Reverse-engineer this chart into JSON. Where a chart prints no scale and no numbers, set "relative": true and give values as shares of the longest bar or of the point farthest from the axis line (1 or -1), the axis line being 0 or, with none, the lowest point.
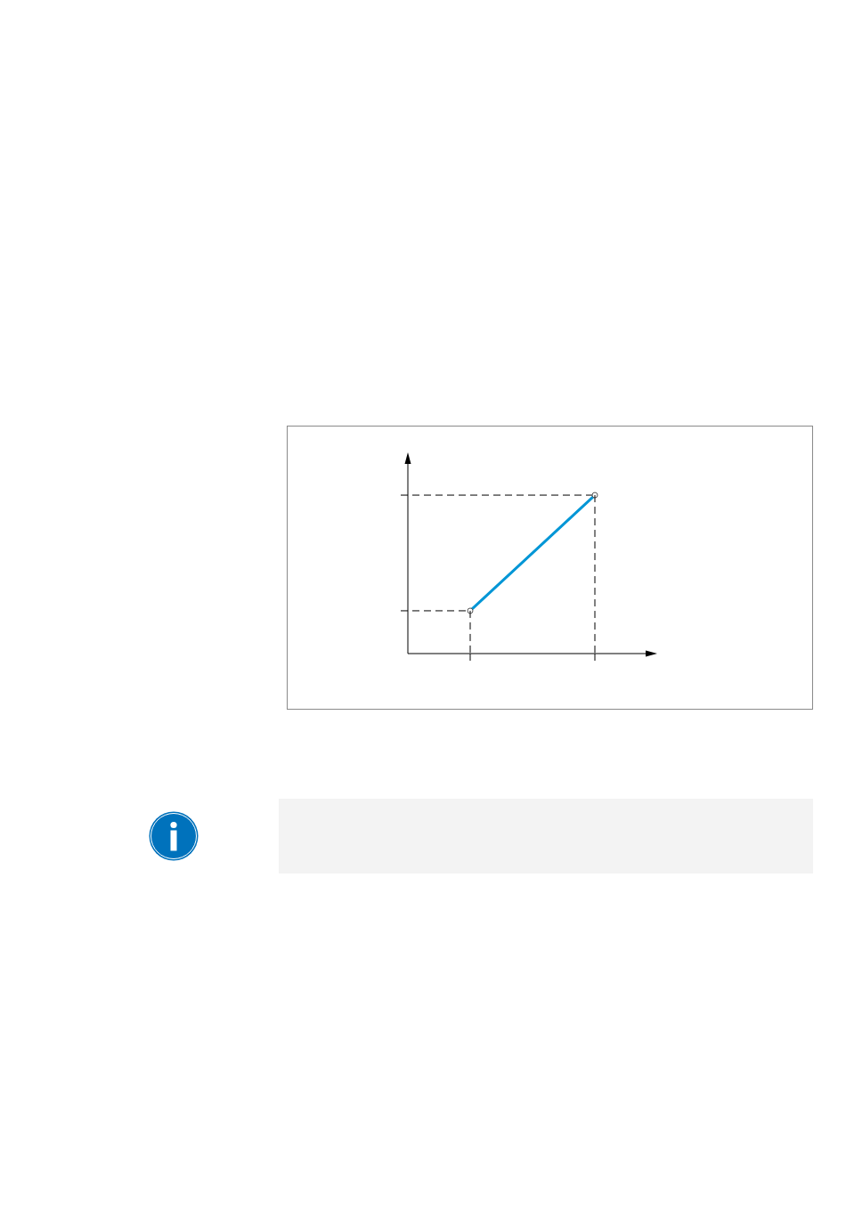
{
  "chart_data": {
    "type": "line",
    "categories": [
      null,
      null
    ],
    "relative": true,
    "series": [
      {
        "color": "#0096d6",
        "values": [
          0.27,
          1
        ]
      }
    ],
    "marker": "circle",
    "ref_lines": [
      {
        "axis": "y",
        "value": 0.27,
        "line_style": "dashed",
        "color": "#000000"
      },
      {
        "axis": "y",
        "value": 1,
        "line_style": "dashed",
        "color": "#000000"
      }
    ]
  }
}
